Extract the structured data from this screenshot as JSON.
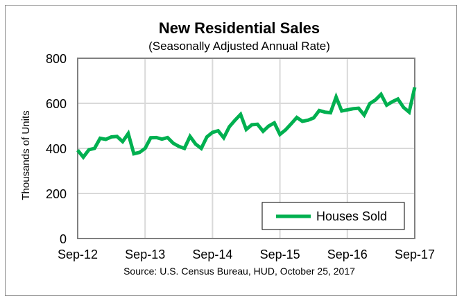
{
  "chart_data": {
    "type": "line",
    "title": "New Residential Sales",
    "subtitle": "(Seasonally Adjusted Annual Rate)",
    "ylabel": "Thousands of Units",
    "xlabel": "",
    "ylim": [
      0,
      800
    ],
    "yticks": [
      0,
      200,
      400,
      600,
      800
    ],
    "xtick_labels": [
      "Sep-12",
      "Sep-13",
      "Sep-14",
      "Sep-15",
      "Sep-16",
      "Sep-17"
    ],
    "grid": true,
    "legend_position": "bottom-right",
    "source": "Source:  U.S. Census Bureau, HUD, October 25, 2017",
    "color": "#00b050",
    "series": [
      {
        "name": "Houses Sold",
        "values": [
          392,
          361,
          394,
          400,
          445,
          440,
          451,
          453,
          430,
          466,
          376,
          382,
          400,
          447,
          448,
          441,
          448,
          423,
          409,
          400,
          453,
          419,
          400,
          451,
          471,
          478,
          447,
          496,
          525,
          551,
          484,
          505,
          507,
          476,
          499,
          513,
          462,
          482,
          509,
          537,
          520,
          525,
          535,
          568,
          561,
          558,
          628,
          566,
          571,
          576,
          578,
          548,
          599,
          615,
          640,
          592,
          607,
          619,
          582,
          561,
          671
        ]
      }
    ]
  }
}
